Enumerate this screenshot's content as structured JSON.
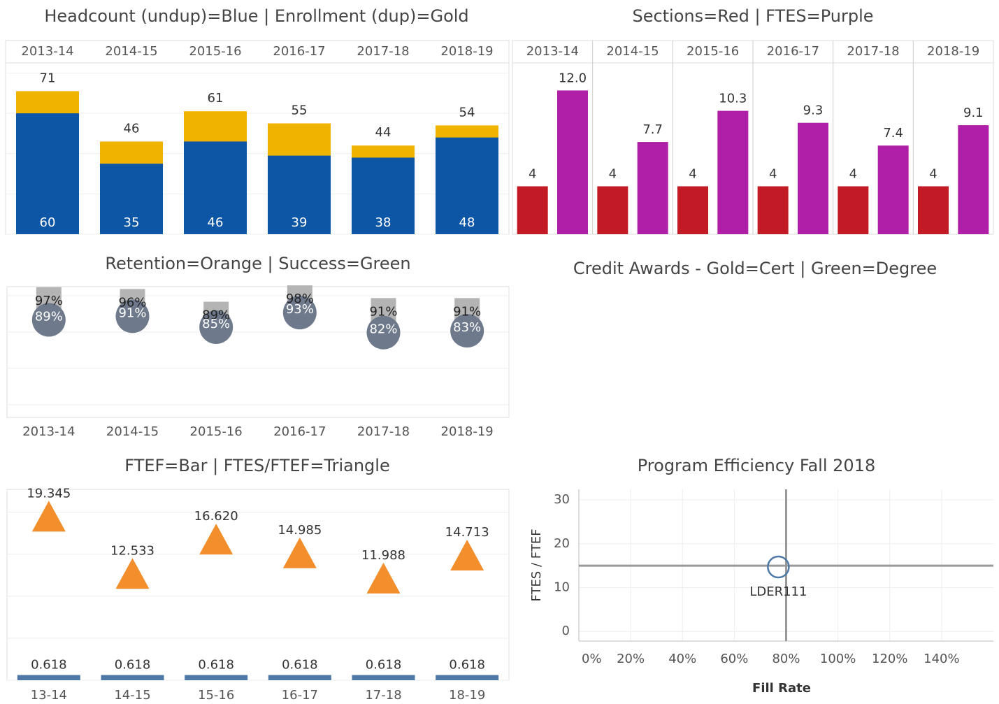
{
  "chart_data": [
    {
      "type": "bar",
      "title": "Headcount (undup)=Blue | Enrollment (dup)=Gold",
      "categories": [
        "2013-14",
        "2014-15",
        "2015-16",
        "2016-17",
        "2017-18",
        "2018-19"
      ],
      "series": [
        {
          "color": "#f0b400",
          "values": [
            71,
            46,
            61,
            55,
            44,
            54
          ]
        },
        {
          "color": "#0d56a6",
          "values": [
            60,
            35,
            46,
            39,
            38,
            48
          ]
        }
      ],
      "ylim": [
        0,
        85
      ],
      "yticks": [
        0,
        20,
        40,
        60,
        80
      ],
      "grid": true
    },
    {
      "type": "column",
      "title": "Sections=Red | FTES=Purple",
      "categories": [
        "2013-14",
        "2014-15",
        "2015-16",
        "2016-17",
        "2017-18",
        "2018-19"
      ],
      "series": [
        {
          "color": "#c21b26",
          "values": [
            4,
            4,
            4,
            4,
            4,
            4
          ]
        },
        {
          "color": "#b01fa8",
          "values": [
            12.0,
            7.7,
            10.3,
            9.3,
            7.4,
            9.1
          ],
          "value_labels": [
            "12.0",
            "7.7",
            "10.3",
            "9.3",
            "7.4",
            "9.1"
          ]
        }
      ],
      "ylim": [
        0,
        14.3
      ],
      "grid": false
    },
    {
      "type": "dot",
      "title": "Retention=Orange | Success=Green",
      "categories": [
        "2013-14",
        "2014-15",
        "2015-16",
        "2016-17",
        "2017-18",
        "2018-19"
      ],
      "series": [
        {
          "color": "#b4b4b4",
          "values": [
            97,
            96,
            89,
            98,
            91,
            91
          ],
          "value_labels": [
            "97%",
            "96%",
            "89%",
            "98%",
            "91%",
            "91%"
          ]
        },
        {
          "color": "#6e7a8c",
          "values": [
            89,
            91,
            85,
            93,
            82,
            83
          ],
          "value_labels": [
            "89%",
            "91%",
            "85%",
            "93%",
            "82%",
            "83%"
          ]
        }
      ],
      "ylim": [
        33,
        105
      ],
      "yticks": [
        40,
        60,
        80,
        100
      ],
      "grid": true
    },
    {
      "type": "bar",
      "title": "Credit Awards - Gold=Cert | Green=Degree"
    },
    {
      "type": "combo",
      "title": "FTEF=Bar | FTES/FTEF=Triangle",
      "categories": [
        "13-14",
        "14-15",
        "15-16",
        "16-17",
        "17-18",
        "18-19"
      ],
      "series": [
        {
          "color": "#4e79a7",
          "values": [
            0.618,
            0.618,
            0.618,
            0.618,
            0.618,
            0.618
          ]
        },
        {
          "color": "#f28e2b",
          "values": [
            19.345,
            12.533,
            16.62,
            14.985,
            11.988,
            14.713
          ],
          "value_labels": [
            "19.345",
            "12.533",
            "16.620",
            "14.985",
            "11.988",
            "14.713"
          ]
        }
      ],
      "ylim": [
        0,
        22.7
      ],
      "yticks": [
        0,
        5,
        10,
        15,
        20
      ],
      "grid": true
    },
    {
      "type": "scatter",
      "title": "Program Efficiency Fall 2018",
      "x_label": "Fill Rate",
      "y_label": "FTES / FTEF",
      "x": [
        77
      ],
      "values": [
        14.7
      ],
      "point_labels": [
        "LDER111"
      ],
      "color": "#4e79a7",
      "xlim": [
        0,
        160
      ],
      "xticks": [
        {
          "value": 0,
          "label": "0%"
        },
        {
          "value": 20,
          "label": "20%"
        },
        {
          "value": 40,
          "label": "40%"
        },
        {
          "value": 60,
          "label": "60%"
        },
        {
          "value": 80,
          "label": "80%"
        },
        {
          "value": 100,
          "label": "100%"
        },
        {
          "value": 120,
          "label": "120%"
        },
        {
          "value": 140,
          "label": "140%"
        }
      ],
      "ylim": [
        -2.2,
        32.4
      ],
      "yticks": [
        0,
        10,
        20,
        30
      ],
      "grid": true,
      "reference_lines": {
        "x": 80,
        "y": 15
      }
    }
  ]
}
